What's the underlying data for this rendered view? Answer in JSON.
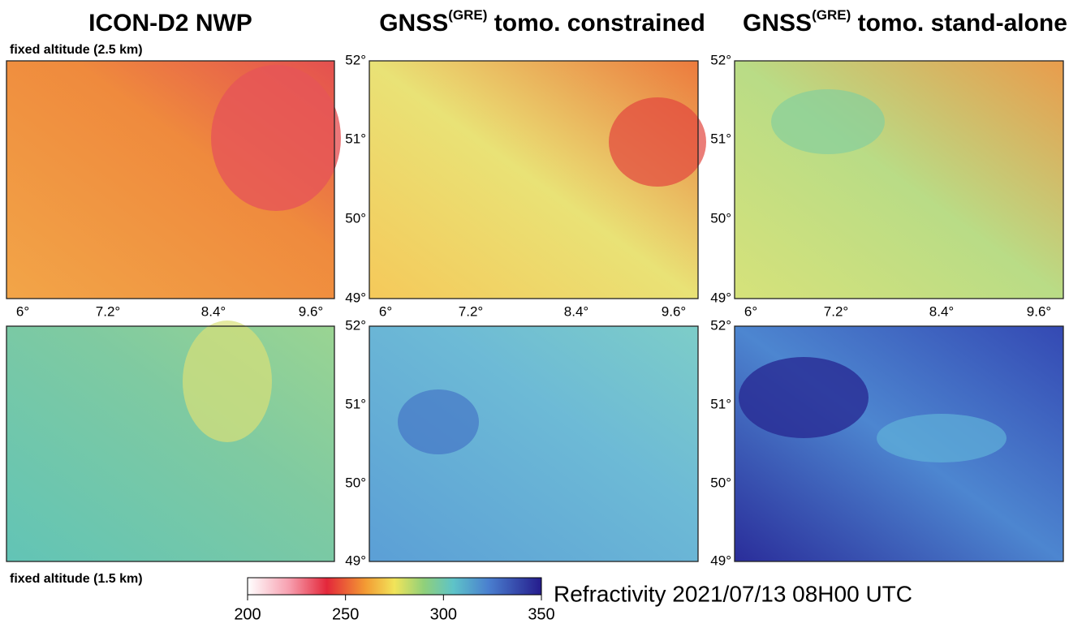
{
  "panels": [
    {
      "title": "ICON-D2   NWP"
    },
    {
      "title": "GNSS",
      "superscript": "(GRE)",
      "title_rest": " tomo. constrained"
    },
    {
      "title": "GNSS",
      "superscript": "(GRE)",
      "title_rest": " tomo. stand-alone"
    }
  ],
  "row_labels": [
    "fixed altitude  (2.5 km)",
    "fixed altitude  (1.5 km)"
  ],
  "lat_labels": [
    "52°",
    "51°",
    "50°",
    "49°"
  ],
  "lon_labels": [
    "6°",
    "7.2°",
    "8.4°",
    "9.6°"
  ],
  "colorbar": {
    "label": "Refractivity 2021/07/13  08H00 UTC",
    "range": [
      200,
      350
    ],
    "ticks": [
      200,
      250,
      300,
      350
    ]
  }
}
